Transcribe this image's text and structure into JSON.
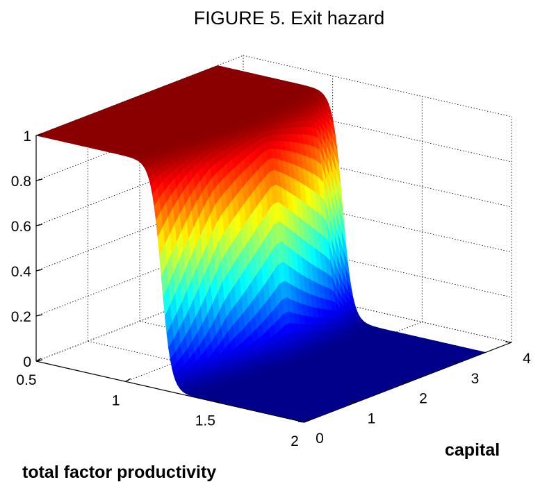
{
  "chart_data": {
    "type": "surface",
    "title": "FIGURE 5. Exit hazard",
    "xlabel": "total factor productivity",
    "ylabel": "capital",
    "zlabel": "",
    "xlim": [
      0.5,
      2
    ],
    "ylim": [
      0,
      4
    ],
    "zlim": [
      0,
      1
    ],
    "x_ticks": [
      "0.5",
      "1",
      "1.5",
      "2"
    ],
    "y_ticks": [
      "0",
      "1",
      "2",
      "3",
      "4"
    ],
    "z_ticks": [
      "0",
      "0.2",
      "0.4",
      "0.6",
      "0.8",
      "1"
    ],
    "grid": true,
    "colormap": "jet",
    "tfp_threshold_grid": [
      {
        "capital": 0.0,
        "tfp": 1.2
      },
      {
        "capital": 1.0,
        "tfp": 1.25
      },
      {
        "capital": 2.0,
        "tfp": 1.28
      },
      {
        "capital": 3.0,
        "tfp": 1.25
      },
      {
        "capital": 3.5,
        "tfp": 1.2
      }
    ],
    "exit_hazard_max": 1,
    "exit_hazard_min": 0
  }
}
